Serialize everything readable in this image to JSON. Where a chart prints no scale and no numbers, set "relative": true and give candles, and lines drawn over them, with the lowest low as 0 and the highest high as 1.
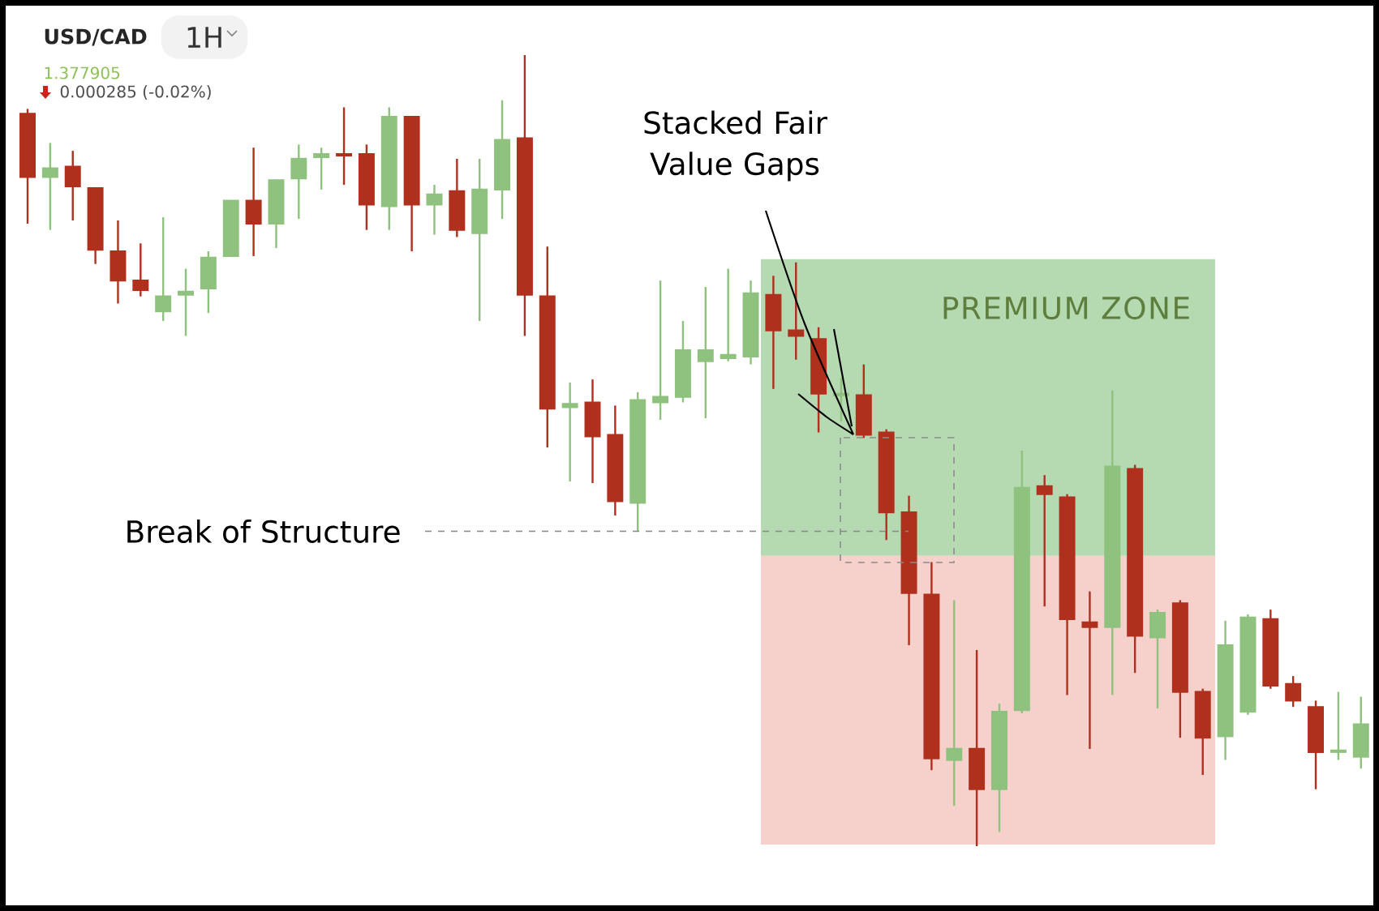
{
  "chart_data": {
    "type": "candlestick",
    "title": "USD/CAD",
    "subtitle": "1H",
    "annotations": [
      "1.377905",
      "0.000285 (-0.02%)",
      "Stacked Fair Value Gaps"
    ],
    "relative": true,
    "categories": [
      null,
      null,
      null,
      null,
      null,
      null,
      null,
      null,
      null,
      null,
      null,
      null,
      null,
      null,
      null,
      null,
      null,
      null,
      null,
      null,
      null,
      null,
      null,
      null,
      null,
      null,
      null,
      null,
      null,
      null,
      null,
      null,
      null,
      null,
      null,
      null,
      null,
      null,
      null,
      null,
      null,
      null,
      null,
      null,
      null,
      null,
      null,
      null,
      null,
      null,
      null,
      null,
      null,
      null,
      null,
      null,
      null,
      null,
      null,
      null
    ],
    "ohlc": [
      [
        0.926,
        0.932,
        0.787,
        0.846
      ],
      [
        0.846,
        0.889,
        0.779,
        0.857
      ],
      [
        0.859,
        0.879,
        0.791,
        0.834
      ],
      [
        0.832,
        0.832,
        0.736,
        0.754
      ],
      [
        0.752,
        0.791,
        0.686,
        0.715
      ],
      [
        0.715,
        0.762,
        0.695,
        0.703
      ],
      [
        0.676,
        0.795,
        0.664,
        0.695
      ],
      [
        0.697,
        0.73,
        0.645,
        0.701
      ],
      [
        0.705,
        0.752,
        0.674,
        0.744
      ],
      [
        0.746,
        0.816,
        0.746,
        0.816
      ],
      [
        0.816,
        0.883,
        0.746,
        0.787
      ],
      [
        0.787,
        0.842,
        0.756,
        0.842
      ],
      [
        0.844,
        0.887,
        0.793,
        0.869
      ],
      [
        0.871,
        0.883,
        0.83,
        0.875
      ],
      [
        0.875,
        0.934,
        0.836,
        0.873
      ],
      [
        0.875,
        0.887,
        0.779,
        0.811
      ],
      [
        0.809,
        0.934,
        0.779,
        0.922
      ],
      [
        0.922,
        0.922,
        0.752,
        0.811
      ],
      [
        0.811,
        0.836,
        0.773,
        0.824
      ],
      [
        0.828,
        0.869,
        0.77,
        0.779
      ],
      [
        0.775,
        0.869,
        0.664,
        0.83
      ],
      [
        0.83,
        0.943,
        0.793,
        0.893
      ],
      [
        0.895,
        1.0,
        0.645,
        0.697
      ],
      [
        0.695,
        0.758,
        0.504,
        0.553
      ],
      [
        0.555,
        0.586,
        0.461,
        0.559
      ],
      [
        0.561,
        0.59,
        0.459,
        0.518
      ],
      [
        0.52,
        0.557,
        0.418,
        0.436
      ],
      [
        0.434,
        0.574,
        0.398,
        0.564
      ],
      [
        0.561,
        0.715,
        0.539,
        0.568
      ],
      [
        0.568,
        0.664,
        0.561,
        0.627
      ],
      [
        0.613,
        0.707,
        0.541,
        0.627
      ],
      [
        0.617,
        0.73,
        0.613,
        0.621
      ],
      [
        0.619,
        0.715,
        0.609,
        0.699
      ],
      [
        0.697,
        0.721,
        0.578,
        0.652
      ],
      [
        0.652,
        0.738,
        0.615,
        0.645
      ],
      [
        0.641,
        0.656,
        0.523,
        0.572
      ],
      [
        0.57,
        0.592,
        0.537,
        0.572
      ],
      [
        0.57,
        0.609,
        0.516,
        0.52
      ],
      [
        0.523,
        0.527,
        0.387,
        0.422
      ],
      [
        0.422,
        0.443,
        0.254,
        0.32
      ],
      [
        0.318,
        0.359,
        0.096,
        0.111
      ],
      [
        0.109,
        0.311,
        0.051,
        0.123
      ],
      [
        0.123,
        0.248,
        0.0,
        0.072
      ],
      [
        0.072,
        0.18,
        0.018,
        0.17
      ],
      [
        0.172,
        0.5,
        0.168,
        0.453
      ],
      [
        0.455,
        0.469,
        0.303,
        0.445
      ],
      [
        0.441,
        0.445,
        0.191,
        0.287
      ],
      [
        0.283,
        0.322,
        0.123,
        0.277
      ],
      [
        0.277,
        0.576,
        0.191,
        0.48
      ],
      [
        0.477,
        0.482,
        0.219,
        0.266
      ],
      [
        0.264,
        0.299,
        0.174,
        0.295
      ],
      [
        0.307,
        0.311,
        0.137,
        0.195
      ],
      [
        0.195,
        0.199,
        0.09,
        0.137
      ],
      [
        0.139,
        0.285,
        0.109,
        0.254
      ],
      [
        0.17,
        0.293,
        0.166,
        0.289
      ],
      [
        0.287,
        0.299,
        0.199,
        0.203
      ],
      [
        0.205,
        0.215,
        0.176,
        0.184
      ],
      [
        0.176,
        0.184,
        0.072,
        0.119
      ],
      [
        0.119,
        0.195,
        0.109,
        0.121
      ],
      [
        0.113,
        0.189,
        0.098,
        0.154
      ]
    ],
    "colors": [
      "#b0301e",
      "#8fc17f",
      "#b0301e",
      "#b0301e",
      "#b0301e",
      "#b0301e",
      "#8fc17f",
      "#8fc17f",
      "#8fc17f",
      "#8fc17f",
      "#b0301e",
      "#8fc17f",
      "#8fc17f",
      "#8fc17f",
      "#b0301e",
      "#b0301e",
      "#8fc17f",
      "#b0301e",
      "#8fc17f",
      "#b0301e",
      "#8fc17f",
      "#8fc17f",
      "#b0301e",
      "#b0301e",
      "#8fc17f",
      "#b0301e",
      "#b0301e",
      "#8fc17f",
      "#8fc17f",
      "#8fc17f",
      "#8fc17f",
      "#8fc17f",
      "#8fc17f",
      "#b0301e",
      "#b0301e",
      "#b0301e",
      "#8fc17f",
      "#b0301e",
      "#b0301e",
      "#b0301e",
      "#b0301e",
      "#8fc17f",
      "#b0301e",
      "#8fc17f",
      "#8fc17f",
      "#b0301e",
      "#b0301e",
      "#b0301e",
      "#8fc17f",
      "#b0301e",
      "#8fc17f",
      "#b0301e",
      "#b0301e",
      "#8fc17f",
      "#8fc17f",
      "#b0301e",
      "#b0301e",
      "#b0301e",
      "#8fc17f",
      "#8fc17f"
    ],
    "bands": [
      {
        "axis": "y",
        "from": 0.367,
        "to": 0.742,
        "label": "PREMIUM ZONE",
        "color": "#b5d9b0"
      },
      {
        "axis": "y",
        "from": 0.002,
        "to": 0.367,
        "color": "#f6d0cb"
      }
    ],
    "ref_lines": [
      {
        "axis": "y",
        "value": 0.398,
        "label": "Break of Structure",
        "color": "#888888",
        "line_style": "dashed"
      }
    ]
  }
}
